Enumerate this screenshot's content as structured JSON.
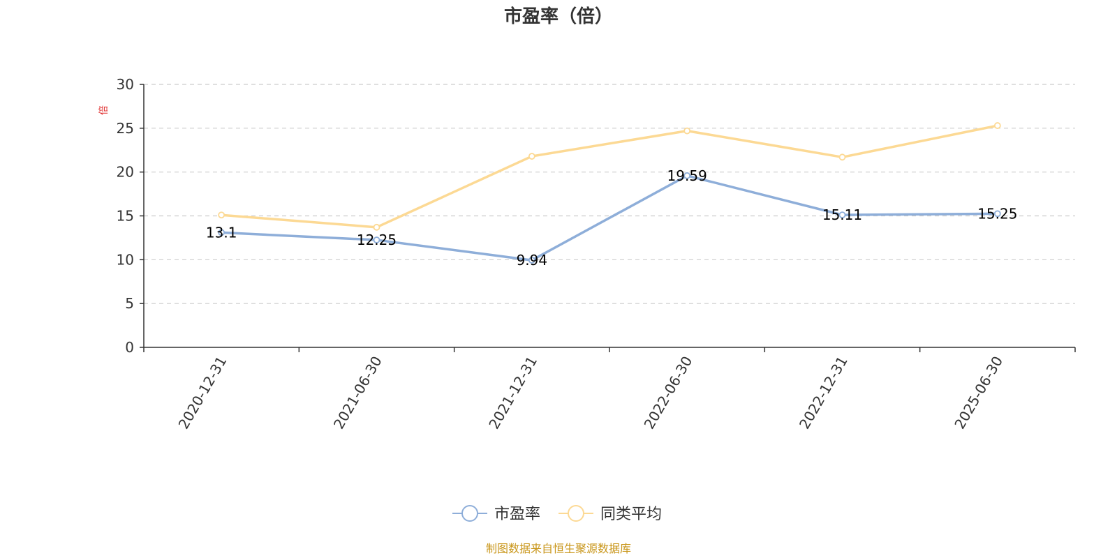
{
  "chart_data": {
    "type": "line",
    "title": "市盈率（倍）",
    "y_unit": "倍",
    "categories": [
      "2020-12-31",
      "2021-06-30",
      "2021-12-31",
      "2022-06-30",
      "2022-12-31",
      "2025-06-30"
    ],
    "ylim": [
      0,
      30
    ],
    "yticks": [
      0,
      5,
      10,
      15,
      20,
      25,
      30
    ],
    "grid": true,
    "legend_position": "bottom-center",
    "series": [
      {
        "name": "市盈率",
        "color": "#8eaed9",
        "values": [
          13.1,
          12.25,
          9.94,
          19.59,
          15.11,
          15.25
        ],
        "data_labels": [
          "13.1",
          "12.25",
          "9.94",
          "19.59",
          "15.11",
          "15.25"
        ]
      },
      {
        "name": "同类平均",
        "color": "#fcd994",
        "values": [
          15.1,
          13.7,
          21.8,
          24.7,
          21.7,
          25.3
        ],
        "data_labels": []
      }
    ]
  },
  "colors": {
    "unit": "#e03030",
    "footer": "#c9961a",
    "axis": "#333333",
    "grid": "#cccccc"
  },
  "footer": "制图数据来自恒生聚源数据库"
}
